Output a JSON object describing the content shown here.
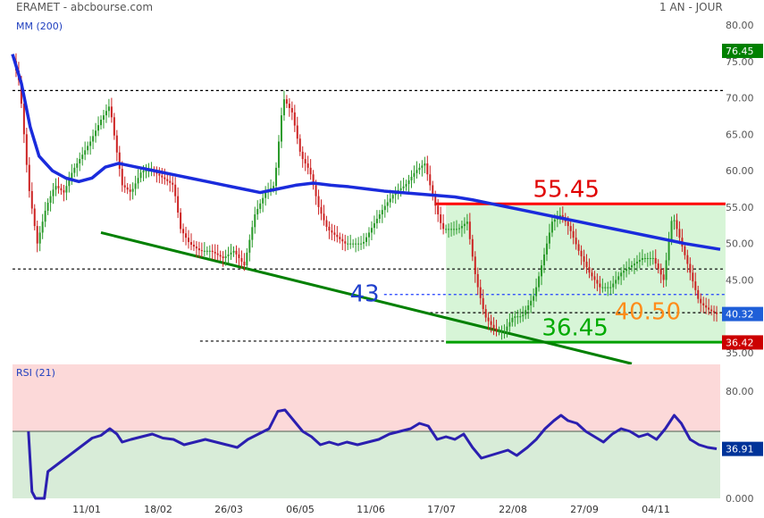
{
  "header": {
    "title": "ERAMET - abcbourse.com",
    "period": "1 AN - JOUR"
  },
  "chart_data": [
    {
      "type": "candlestick",
      "indicator_label": "MM (200)",
      "yaxis_ticks": [
        "80.00",
        "75.00",
        "70.00",
        "65.00",
        "60.00",
        "55.00",
        "50.00",
        "45.00",
        "40.00",
        "35.00"
      ],
      "ylim": [
        35,
        80
      ],
      "x_tick_labels": [
        "11/01",
        "18/02",
        "26/03",
        "06/05",
        "11/06",
        "17/07",
        "22/08",
        "27/09",
        "04/11"
      ],
      "price_badges": [
        {
          "value": "76.45",
          "color": "#008000",
          "y": 76.45
        },
        {
          "value": "40.32",
          "color": "#1f5fd8",
          "y": 40.32
        },
        {
          "value": "36.42",
          "color": "#cc0000",
          "y": 36.42
        }
      ],
      "price_path": [
        [
          0,
          75.5
        ],
        [
          8,
          72.0
        ],
        [
          18,
          58
        ],
        [
          28,
          50
        ],
        [
          38,
          55
        ],
        [
          48,
          58
        ],
        [
          58,
          57
        ],
        [
          68,
          60
        ],
        [
          78,
          62
        ],
        [
          88,
          64
        ],
        [
          100,
          67
        ],
        [
          110,
          69
        ],
        [
          116,
          64
        ],
        [
          124,
          58
        ],
        [
          134,
          57
        ],
        [
          146,
          60
        ],
        [
          158,
          60
        ],
        [
          170,
          59
        ],
        [
          182,
          58
        ],
        [
          190,
          52
        ],
        [
          200,
          50
        ],
        [
          212,
          49
        ],
        [
          224,
          49
        ],
        [
          238,
          48
        ],
        [
          250,
          49
        ],
        [
          262,
          47
        ],
        [
          274,
          54
        ],
        [
          286,
          57
        ],
        [
          296,
          58
        ],
        [
          306,
          70
        ],
        [
          316,
          68
        ],
        [
          326,
          62
        ],
        [
          336,
          60
        ],
        [
          346,
          55
        ],
        [
          356,
          52
        ],
        [
          366,
          51
        ],
        [
          376,
          50
        ],
        [
          386,
          50
        ],
        [
          396,
          50
        ],
        [
          410,
          53
        ],
        [
          420,
          55
        ],
        [
          432,
          57
        ],
        [
          444,
          58
        ],
        [
          456,
          60
        ],
        [
          466,
          61
        ],
        [
          476,
          56
        ],
        [
          486,
          52
        ],
        [
          494,
          52
        ],
        [
          504,
          52
        ],
        [
          514,
          53
        ],
        [
          524,
          45
        ],
        [
          534,
          40
        ],
        [
          546,
          38
        ],
        [
          556,
          38
        ],
        [
          566,
          40
        ],
        [
          576,
          40
        ],
        [
          590,
          43
        ],
        [
          600,
          48
        ],
        [
          610,
          53
        ],
        [
          620,
          54
        ],
        [
          630,
          52
        ],
        [
          640,
          49
        ],
        [
          652,
          46
        ],
        [
          664,
          44
        ],
        [
          676,
          44
        ],
        [
          688,
          46
        ],
        [
          700,
          47
        ],
        [
          712,
          48
        ],
        [
          724,
          48
        ],
        [
          736,
          45
        ],
        [
          746,
          54
        ],
        [
          756,
          50
        ],
        [
          766,
          46
        ],
        [
          776,
          42
        ],
        [
          786,
          41
        ],
        [
          796,
          40.32
        ]
      ],
      "ma200_path": [
        [
          0,
          76
        ],
        [
          10,
          72
        ],
        [
          20,
          66
        ],
        [
          30,
          62
        ],
        [
          45,
          60
        ],
        [
          60,
          59
        ],
        [
          75,
          58.5
        ],
        [
          90,
          59
        ],
        [
          105,
          60.5
        ],
        [
          120,
          61
        ],
        [
          140,
          60.5
        ],
        [
          160,
          60
        ],
        [
          180,
          59.5
        ],
        [
          200,
          59
        ],
        [
          220,
          58.5
        ],
        [
          240,
          58
        ],
        [
          260,
          57.5
        ],
        [
          280,
          57
        ],
        [
          300,
          57.5
        ],
        [
          320,
          58
        ],
        [
          340,
          58.3
        ],
        [
          360,
          58
        ],
        [
          380,
          57.8
        ],
        [
          400,
          57.5
        ],
        [
          420,
          57.2
        ],
        [
          440,
          57
        ],
        [
          460,
          56.8
        ],
        [
          480,
          56.6
        ],
        [
          500,
          56.4
        ],
        [
          520,
          56
        ],
        [
          540,
          55.5
        ],
        [
          560,
          55
        ],
        [
          580,
          54.5
        ],
        [
          600,
          54
        ],
        [
          620,
          53.5
        ],
        [
          640,
          53
        ],
        [
          660,
          52.5
        ],
        [
          680,
          52
        ],
        [
          700,
          51.5
        ],
        [
          720,
          51
        ],
        [
          740,
          50.5
        ],
        [
          760,
          50
        ],
        [
          780,
          49.6
        ],
        [
          800,
          49.2
        ]
      ],
      "horizontal_levels": [
        {
          "value": 71.0,
          "style": "dashed",
          "color": "#000000",
          "from": 0,
          "to": 806
        },
        {
          "value": 46.5,
          "style": "dashed",
          "color": "#000000",
          "from": 0,
          "to": 806
        },
        {
          "value": 55.45,
          "style": "solid",
          "color": "#ff0000",
          "from": 478,
          "to": 806,
          "label": "55.45"
        },
        {
          "value": 43.0,
          "style": "dashed",
          "color": "#1f3fff",
          "from": 420,
          "to": 806,
          "label": "43"
        },
        {
          "value": 40.5,
          "style": "dashed",
          "color": "#000000",
          "from": 466,
          "to": 806,
          "label": "40.50"
        },
        {
          "value": 36.45,
          "style": "solid",
          "color": "#00a000",
          "from": 490,
          "to": 806,
          "label": "36.45"
        },
        {
          "value": 36.6,
          "style": "dashed",
          "color": "#000000",
          "from": 212,
          "to": 490
        }
      ],
      "annotations": [
        {
          "text": "55.45",
          "color": "#e00000",
          "x": 626,
          "y": 57.3
        },
        {
          "text": "43",
          "color": "#1f3fcc",
          "x": 398,
          "y": 43.0
        },
        {
          "text": "40.50",
          "color": "#ff8c1a",
          "x": 718,
          "y": 40.5
        },
        {
          "text": "36.45",
          "color": "#00aa00",
          "x": 636,
          "y": 38.3
        }
      ],
      "trendline": {
        "x1": 100,
        "y1": 51.5,
        "x2": 700,
        "y2": 33.5,
        "color": "#008000"
      },
      "shaded_box": {
        "x1": 490,
        "x2": 806,
        "ytop": 55.45,
        "ybottom": 36.45,
        "color": "#d7f5d7"
      }
    },
    {
      "type": "line",
      "indicator_label": "RSI (21)",
      "yaxis_ticks": [
        "80.00",
        "0.000"
      ],
      "ylim": [
        0,
        100
      ],
      "current_value": "36.91",
      "current_color": "#003399",
      "midline": 50,
      "rsi_path": [
        [
          18,
          50
        ],
        [
          22,
          5
        ],
        [
          26,
          0
        ],
        [
          36,
          0
        ],
        [
          40,
          20
        ],
        [
          50,
          25
        ],
        [
          60,
          30
        ],
        [
          70,
          35
        ],
        [
          80,
          40
        ],
        [
          90,
          45
        ],
        [
          100,
          47
        ],
        [
          110,
          52
        ],
        [
          118,
          48
        ],
        [
          124,
          42
        ],
        [
          134,
          44
        ],
        [
          146,
          46
        ],
        [
          158,
          48
        ],
        [
          170,
          45
        ],
        [
          182,
          44
        ],
        [
          194,
          40
        ],
        [
          206,
          42
        ],
        [
          218,
          44
        ],
        [
          230,
          42
        ],
        [
          242,
          40
        ],
        [
          254,
          38
        ],
        [
          266,
          44
        ],
        [
          278,
          48
        ],
        [
          290,
          52
        ],
        [
          300,
          65
        ],
        [
          308,
          66
        ],
        [
          318,
          58
        ],
        [
          328,
          50
        ],
        [
          338,
          46
        ],
        [
          348,
          40
        ],
        [
          358,
          42
        ],
        [
          368,
          40
        ],
        [
          378,
          42
        ],
        [
          390,
          40
        ],
        [
          402,
          42
        ],
        [
          414,
          44
        ],
        [
          426,
          48
        ],
        [
          438,
          50
        ],
        [
          450,
          52
        ],
        [
          460,
          56
        ],
        [
          470,
          54
        ],
        [
          480,
          44
        ],
        [
          490,
          46
        ],
        [
          500,
          44
        ],
        [
          510,
          48
        ],
        [
          520,
          38
        ],
        [
          530,
          30
        ],
        [
          540,
          32
        ],
        [
          550,
          34
        ],
        [
          560,
          36
        ],
        [
          570,
          32
        ],
        [
          582,
          38
        ],
        [
          592,
          44
        ],
        [
          602,
          52
        ],
        [
          612,
          58
        ],
        [
          620,
          62
        ],
        [
          628,
          58
        ],
        [
          638,
          56
        ],
        [
          648,
          50
        ],
        [
          658,
          46
        ],
        [
          668,
          42
        ],
        [
          678,
          48
        ],
        [
          688,
          52
        ],
        [
          698,
          50
        ],
        [
          708,
          46
        ],
        [
          718,
          48
        ],
        [
          728,
          44
        ],
        [
          738,
          52
        ],
        [
          748,
          62
        ],
        [
          756,
          56
        ],
        [
          766,
          44
        ],
        [
          776,
          40
        ],
        [
          786,
          38
        ],
        [
          796,
          37
        ]
      ]
    }
  ]
}
